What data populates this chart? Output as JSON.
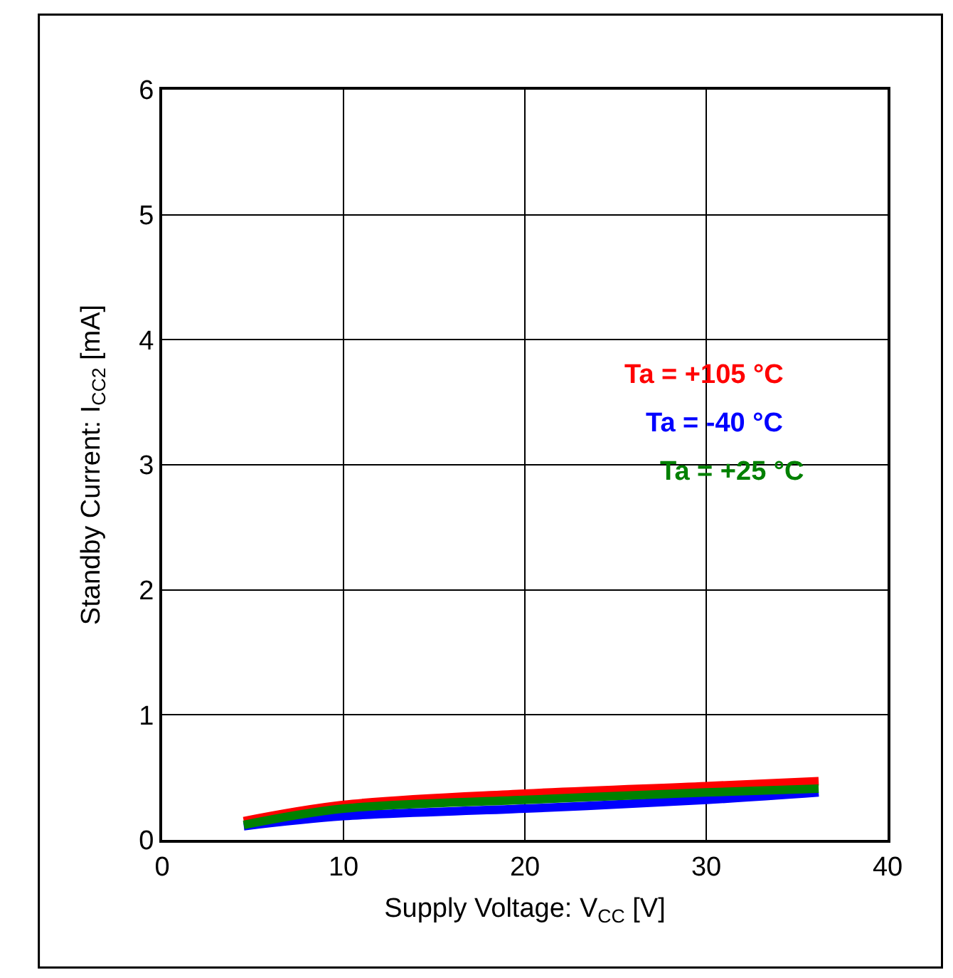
{
  "chart_data": {
    "type": "line",
    "xlabel": "Supply Voltage: V$_{CC}$ [V]",
    "ylabel": "Standby Current: I$_{CC2}$ [mA]",
    "x": [
      4.5,
      10,
      20,
      30,
      36.2
    ],
    "series": [
      {
        "name": "Ta = +105 °C",
        "color": "#ff0000",
        "values": [
          0.15,
          0.28,
          0.37,
          0.43,
          0.47
        ]
      },
      {
        "name": "Ta = -40 °C",
        "color": "#0000ff",
        "values": [
          0.11,
          0.19,
          0.25,
          0.32,
          0.38
        ]
      },
      {
        "name": "Ta = +25 °C",
        "color": "#008000",
        "values": [
          0.12,
          0.25,
          0.32,
          0.38,
          0.41
        ]
      }
    ],
    "xlim": [
      0,
      40
    ],
    "xticks": [
      0,
      10,
      20,
      30,
      40
    ],
    "ylim": [
      0,
      6
    ],
    "yticks": [
      0,
      1,
      2,
      3,
      4,
      5,
      6
    ],
    "grid": true,
    "legend": false,
    "marker": "none",
    "line_style": "solid"
  }
}
